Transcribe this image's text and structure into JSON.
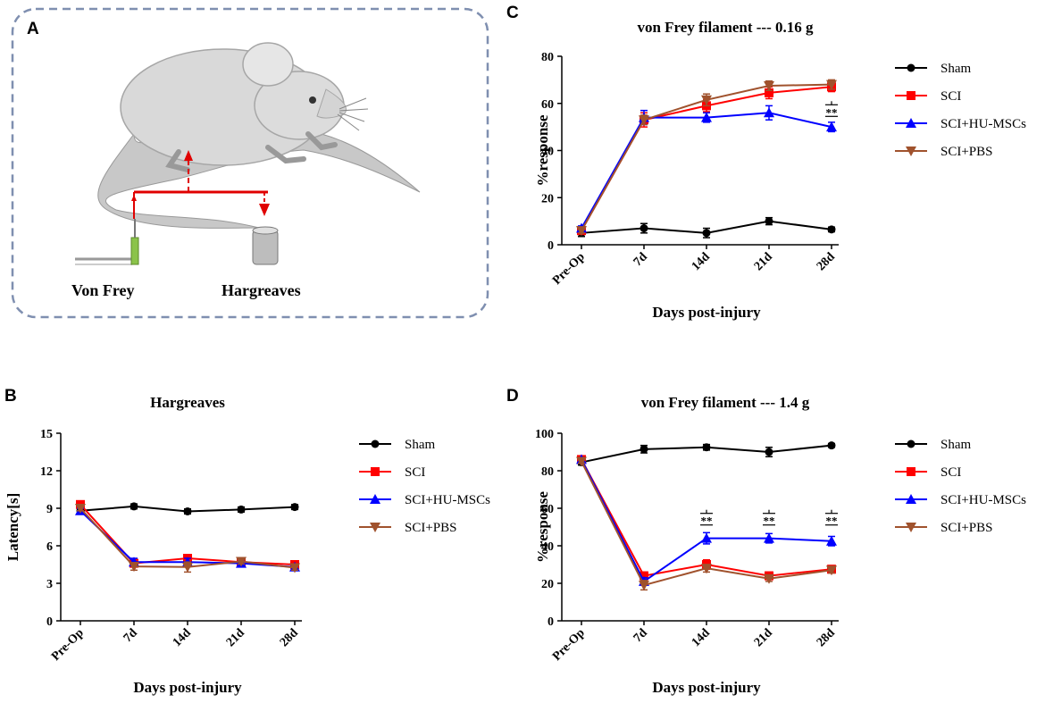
{
  "panels": {
    "a": "A",
    "b": "B",
    "c": "C",
    "d": "D"
  },
  "illustration": {
    "left_label": "Von Frey",
    "right_label": "Hargreaves"
  },
  "colors": {
    "sham": "#000000",
    "sci": "#ff0000",
    "hu": "#0000ff",
    "pbs": "#a0522d"
  },
  "chart_data": [
    {
      "id": "C",
      "type": "line",
      "title": "von Frey filament --- 0.16 g",
      "xlabel": "Days post-injury",
      "ylabel": "%response",
      "categories": [
        "Pre-Op",
        "7d",
        "14d",
        "21d",
        "28d"
      ],
      "ylim": [
        0,
        80
      ],
      "yticks": [
        "0",
        "20",
        "40",
        "60",
        "80"
      ],
      "series": [
        {
          "name": "Sham",
          "values": [
            5,
            7,
            5,
            10,
            6.5
          ],
          "err": [
            1.5,
            2,
            2,
            1.5,
            1
          ],
          "color": "#000000",
          "marker": "circle"
        },
        {
          "name": "SCI",
          "values": [
            6,
            53,
            59,
            64.5,
            67
          ],
          "err": [
            1,
            3,
            2.5,
            2.5,
            2
          ],
          "color": "#ff0000",
          "marker": "square"
        },
        {
          "name": "SCI+HU-MSCs",
          "values": [
            7,
            54,
            54,
            56,
            50
          ],
          "err": [
            1,
            3,
            2,
            3,
            2
          ],
          "color": "#0000ff",
          "marker": "triangle-up"
        },
        {
          "name": "SCI+PBS",
          "values": [
            6,
            53,
            61.5,
            67.5,
            68
          ],
          "err": [
            1,
            2,
            2.5,
            2,
            2
          ],
          "color": "#a0522d",
          "marker": "triangle-down"
        }
      ],
      "annotations": [
        {
          "x": "28d",
          "y": 56,
          "text": "**"
        }
      ]
    },
    {
      "id": "B",
      "type": "line",
      "title": "Hargreaves",
      "xlabel": "Days post-injury",
      "ylabel": "Latency[s]",
      "categories": [
        "Pre-Op",
        "7d",
        "14d",
        "21d",
        "28d"
      ],
      "ylim": [
        0,
        15
      ],
      "yticks": [
        "0",
        "3",
        "6",
        "9",
        "12",
        "15"
      ],
      "series": [
        {
          "name": "Sham",
          "values": [
            8.8,
            9.15,
            8.75,
            8.9,
            9.1
          ],
          "err": [
            0.2,
            0.2,
            0.2,
            0.2,
            0.2
          ],
          "color": "#000000",
          "marker": "circle"
        },
        {
          "name": "SCI",
          "values": [
            9.3,
            4.6,
            5.0,
            4.7,
            4.5
          ],
          "err": [
            0.2,
            0.3,
            0.3,
            0.2,
            0.2
          ],
          "color": "#ff0000",
          "marker": "square"
        },
        {
          "name": "SCI+HU-MSCs",
          "values": [
            8.8,
            4.7,
            4.7,
            4.6,
            4.3
          ],
          "err": [
            0.2,
            0.3,
            0.3,
            0.2,
            0.2
          ],
          "color": "#0000ff",
          "marker": "triangle-up"
        },
        {
          "name": "SCI+PBS",
          "values": [
            9.0,
            4.35,
            4.3,
            4.75,
            4.25
          ],
          "err": [
            0.2,
            0.3,
            0.4,
            0.2,
            0.2
          ],
          "color": "#a0522d",
          "marker": "triangle-down"
        }
      ],
      "annotations": []
    },
    {
      "id": "D",
      "type": "line",
      "title": "von Frey filament --- 1.4 g",
      "xlabel": "Days post-injury",
      "ylabel": "%response",
      "categories": [
        "Pre-Op",
        "7d",
        "14d",
        "21d",
        "28d"
      ],
      "ylim": [
        0,
        100
      ],
      "yticks": [
        "0",
        "20",
        "40",
        "60",
        "80",
        "100"
      ],
      "series": [
        {
          "name": "Sham",
          "values": [
            84.5,
            91.5,
            92.5,
            90,
            93.5
          ],
          "err": [
            1.5,
            2,
            1.5,
            2.5,
            1
          ],
          "color": "#000000",
          "marker": "circle"
        },
        {
          "name": "SCI",
          "values": [
            86,
            24,
            30,
            24,
            27.5
          ],
          "err": [
            1,
            2,
            2.5,
            2,
            2
          ],
          "color": "#ff0000",
          "marker": "square"
        },
        {
          "name": "SCI+HU-MSCs",
          "values": [
            86,
            21,
            44,
            44,
            42.5
          ],
          "err": [
            1,
            2,
            3,
            2.5,
            2.5
          ],
          "color": "#0000ff",
          "marker": "triangle-up"
        },
        {
          "name": "SCI+PBS",
          "values": [
            85,
            19,
            28,
            22.5,
            27
          ],
          "err": [
            1,
            2.5,
            2,
            1.5,
            1.5
          ],
          "color": "#a0522d",
          "marker": "triangle-down"
        }
      ],
      "annotations": [
        {
          "x": "14d",
          "y": 53,
          "text": "**"
        },
        {
          "x": "21d",
          "y": 53,
          "text": "**"
        },
        {
          "x": "28d",
          "y": 53,
          "text": "**"
        }
      ]
    }
  ]
}
